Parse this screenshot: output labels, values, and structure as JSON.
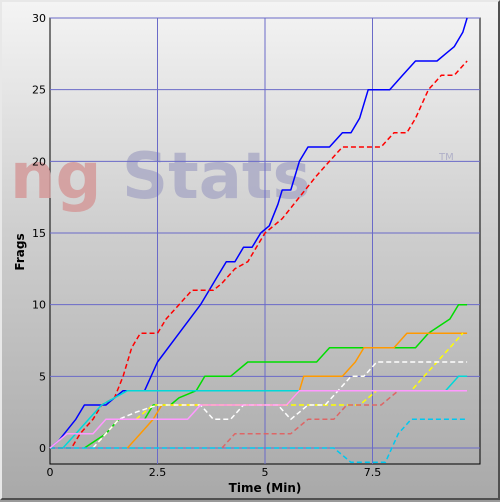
{
  "chart_data": {
    "type": "line",
    "title": "",
    "xlabel": "Time (Min)",
    "ylabel": "Frags",
    "xlim": [
      0,
      10
    ],
    "ylim": [
      0,
      30
    ],
    "xticks": [
      {
        "v": 0,
        "label": "0"
      },
      {
        "v": 2.5,
        "label": "2.5"
      },
      {
        "v": 5,
        "label": "5"
      },
      {
        "v": 7.5,
        "label": "7.5"
      }
    ],
    "yticks": [
      0,
      5,
      10,
      15,
      20,
      25,
      30
    ],
    "grid": true,
    "watermark": {
      "prefix": "ng",
      "main": "Stats",
      "tm": "TM"
    },
    "colors": {
      "grid": "#6a6ac8",
      "watermark_prefix": "#d49a9a",
      "watermark_main": "#a6a6c4"
    },
    "series": [
      {
        "color": "#0000ff",
        "dash": false,
        "points": [
          [
            0,
            0
          ],
          [
            0.2,
            0.5
          ],
          [
            0.6,
            2
          ],
          [
            0.8,
            3
          ],
          [
            1.3,
            3
          ],
          [
            1.5,
            3.5
          ],
          [
            1.7,
            4
          ],
          [
            2.2,
            4
          ],
          [
            2.5,
            6
          ],
          [
            3.0,
            8
          ],
          [
            3.5,
            10
          ],
          [
            3.9,
            12
          ],
          [
            4.1,
            13
          ],
          [
            4.3,
            13
          ],
          [
            4.5,
            14
          ],
          [
            4.7,
            14
          ],
          [
            4.9,
            15
          ],
          [
            5.1,
            15.5
          ],
          [
            5.3,
            17
          ],
          [
            5.4,
            18
          ],
          [
            5.6,
            18
          ],
          [
            5.8,
            20
          ],
          [
            6.0,
            21
          ],
          [
            6.5,
            21
          ],
          [
            6.8,
            22
          ],
          [
            7.0,
            22
          ],
          [
            7.2,
            23
          ],
          [
            7.4,
            25
          ],
          [
            7.9,
            25
          ],
          [
            8.2,
            26
          ],
          [
            8.5,
            27
          ],
          [
            9.0,
            27
          ],
          [
            9.2,
            27.5
          ],
          [
            9.4,
            28
          ],
          [
            9.6,
            29
          ],
          [
            9.7,
            30
          ]
        ]
      },
      {
        "color": "#ff0000",
        "dash": true,
        "points": [
          [
            0,
            0
          ],
          [
            0.5,
            0
          ],
          [
            0.7,
            1
          ],
          [
            1.0,
            2
          ],
          [
            1.2,
            3
          ],
          [
            1.5,
            3.5
          ],
          [
            1.7,
            5
          ],
          [
            1.9,
            7
          ],
          [
            2.1,
            8
          ],
          [
            2.5,
            8
          ],
          [
            2.7,
            9
          ],
          [
            3.0,
            10
          ],
          [
            3.3,
            11
          ],
          [
            3.8,
            11
          ],
          [
            4.0,
            11.5
          ],
          [
            4.3,
            12.5
          ],
          [
            4.6,
            13
          ],
          [
            4.8,
            14
          ],
          [
            5.0,
            15
          ],
          [
            5.4,
            16
          ],
          [
            5.8,
            17.5
          ],
          [
            6.2,
            19
          ],
          [
            6.5,
            20
          ],
          [
            6.8,
            21
          ],
          [
            7.7,
            21
          ],
          [
            8.0,
            22
          ],
          [
            8.3,
            22
          ],
          [
            8.5,
            23
          ],
          [
            8.8,
            25
          ],
          [
            9.1,
            26
          ],
          [
            9.4,
            26
          ],
          [
            9.7,
            27
          ]
        ]
      },
      {
        "color": "#00dd00",
        "dash": false,
        "points": [
          [
            0.8,
            0
          ],
          [
            1.3,
            1
          ],
          [
            1.6,
            2
          ],
          [
            2.2,
            2
          ],
          [
            2.4,
            3
          ],
          [
            2.8,
            3
          ],
          [
            3.0,
            3.5
          ],
          [
            3.4,
            4
          ],
          [
            3.6,
            5
          ],
          [
            4.2,
            5
          ],
          [
            4.6,
            6
          ],
          [
            6.2,
            6
          ],
          [
            6.5,
            7
          ],
          [
            8.5,
            7
          ],
          [
            8.8,
            8
          ],
          [
            9.3,
            9
          ],
          [
            9.5,
            10
          ],
          [
            9.7,
            10
          ]
        ]
      },
      {
        "color": "#ff9900",
        "dash": false,
        "points": [
          [
            1.8,
            0
          ],
          [
            2.1,
            1
          ],
          [
            2.4,
            2
          ],
          [
            2.6,
            3
          ],
          [
            5.5,
            3
          ],
          [
            5.8,
            4
          ],
          [
            5.9,
            5
          ],
          [
            6.8,
            5
          ],
          [
            7.1,
            6
          ],
          [
            7.3,
            7
          ],
          [
            8.0,
            7
          ],
          [
            8.3,
            8
          ],
          [
            9.7,
            8
          ]
        ]
      },
      {
        "color": "#ffff00",
        "dash": true,
        "points": [
          [
            1.0,
            0
          ],
          [
            1.3,
            1
          ],
          [
            1.6,
            2
          ],
          [
            2.0,
            2
          ],
          [
            2.4,
            3
          ],
          [
            5.7,
            3
          ],
          [
            7.2,
            3
          ],
          [
            7.6,
            4
          ],
          [
            8.4,
            4
          ],
          [
            8.7,
            5
          ],
          [
            9.0,
            6
          ],
          [
            9.3,
            7
          ],
          [
            9.6,
            8
          ]
        ]
      },
      {
        "color": "#ffffff",
        "dash": true,
        "points": [
          [
            1.0,
            0
          ],
          [
            1.3,
            1
          ],
          [
            1.6,
            2
          ],
          [
            2.0,
            2.5
          ],
          [
            2.5,
            3
          ],
          [
            3.5,
            3
          ],
          [
            3.8,
            2
          ],
          [
            4.2,
            2
          ],
          [
            4.5,
            3
          ],
          [
            5.3,
            3
          ],
          [
            5.6,
            2
          ],
          [
            6.0,
            3
          ],
          [
            6.4,
            3
          ],
          [
            6.7,
            4
          ],
          [
            7.0,
            5
          ],
          [
            7.3,
            5
          ],
          [
            7.6,
            6
          ],
          [
            9.7,
            6
          ]
        ]
      },
      {
        "color": "#00d8d8",
        "dash": false,
        "points": [
          [
            0.3,
            0
          ],
          [
            0.6,
            1
          ],
          [
            0.9,
            2
          ],
          [
            1.2,
            3
          ],
          [
            1.5,
            3.5
          ],
          [
            1.8,
            4
          ],
          [
            9.2,
            4
          ],
          [
            9.5,
            5
          ],
          [
            9.7,
            5
          ]
        ]
      },
      {
        "color": "#00c8f0",
        "dash": true,
        "points": [
          [
            0,
            0
          ],
          [
            6.6,
            0
          ],
          [
            7.0,
            -1
          ],
          [
            7.8,
            -1
          ],
          [
            8.1,
            1
          ],
          [
            8.4,
            2
          ],
          [
            9.7,
            2
          ]
        ]
      },
      {
        "color": "#dd6666",
        "dash": true,
        "points": [
          [
            4.0,
            0
          ],
          [
            4.3,
            1
          ],
          [
            5.6,
            1
          ],
          [
            6.0,
            2
          ],
          [
            6.6,
            2
          ],
          [
            6.9,
            3
          ],
          [
            7.7,
            3
          ],
          [
            8.1,
            4
          ],
          [
            9.7,
            4
          ]
        ]
      },
      {
        "color": "#ff99ff",
        "dash": false,
        "points": [
          [
            0,
            0
          ],
          [
            0.4,
            1
          ],
          [
            1.0,
            1
          ],
          [
            1.3,
            2
          ],
          [
            3.2,
            2
          ],
          [
            3.5,
            3
          ],
          [
            5.5,
            3
          ],
          [
            5.8,
            4
          ],
          [
            9.7,
            4
          ]
        ]
      }
    ]
  }
}
